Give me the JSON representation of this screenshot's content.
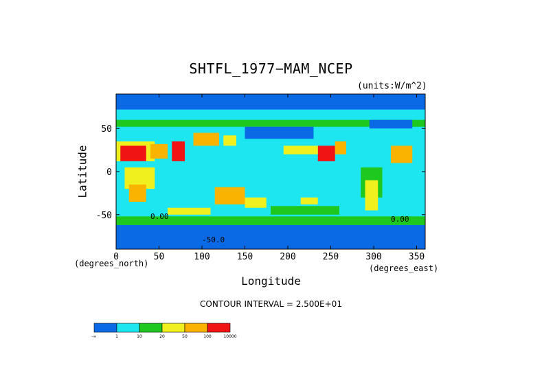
{
  "chart_data": {
    "type": "heatmap",
    "title": "SHTFL_1977−MAM_NCEP",
    "units_label": "(units:W/m^2)",
    "xlabel": "Longitude",
    "ylabel": "Latitude",
    "x_unit_label": "(degrees_east)",
    "y_unit_label": "(degrees_north)",
    "xlim": [
      0,
      360
    ],
    "ylim": [
      -90,
      90
    ],
    "x_ticks": [
      0,
      50,
      100,
      150,
      200,
      250,
      300,
      350
    ],
    "y_ticks": [
      50,
      0,
      -50
    ],
    "contour_interval_label": "CONTOUR INTERVAL = 2.500E+01",
    "contour_labels": [
      "0.00",
      "0.00",
      "-50.0"
    ],
    "colorbar": {
      "labels": [
        "-∞",
        "1",
        "10",
        "20",
        "50",
        "100",
        "10000"
      ],
      "colors": [
        "#0a6ae6",
        "#1ee6f0",
        "#1ec81e",
        "#f0f01e",
        "#fab400",
        "#f01414"
      ]
    }
  }
}
